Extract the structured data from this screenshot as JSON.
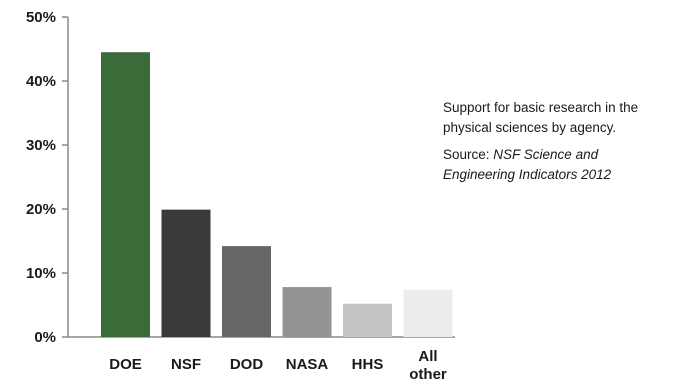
{
  "chart_data": {
    "type": "bar",
    "categories": [
      "DOE",
      "NSF",
      "DOD",
      "NASA",
      "HHS",
      "All other"
    ],
    "category_lines": [
      [
        "DOE"
      ],
      [
        "NSF"
      ],
      [
        "DOD"
      ],
      [
        "NASA"
      ],
      [
        "HHS"
      ],
      [
        "All",
        "other"
      ]
    ],
    "values": [
      44.5,
      19.9,
      14.2,
      7.8,
      5.2,
      7.4
    ],
    "colors": [
      "#3c6b3a",
      "#3a3a3a",
      "#666666",
      "#939393",
      "#c4c4c4",
      "#ececec"
    ],
    "ylim": [
      0,
      50
    ],
    "yticks": [
      0,
      10,
      20,
      30,
      40,
      50
    ],
    "ytick_labels": [
      "0%",
      "10%",
      "20%",
      "30%",
      "40%",
      "50%"
    ],
    "title": "",
    "xlabel": "",
    "ylabel": "",
    "grid": false
  },
  "caption": {
    "description": "Support for basic research in the physical sciences by agency.",
    "source_prefix": "Source: ",
    "source_title": "NSF Science and Engineering Indicators 2012"
  }
}
